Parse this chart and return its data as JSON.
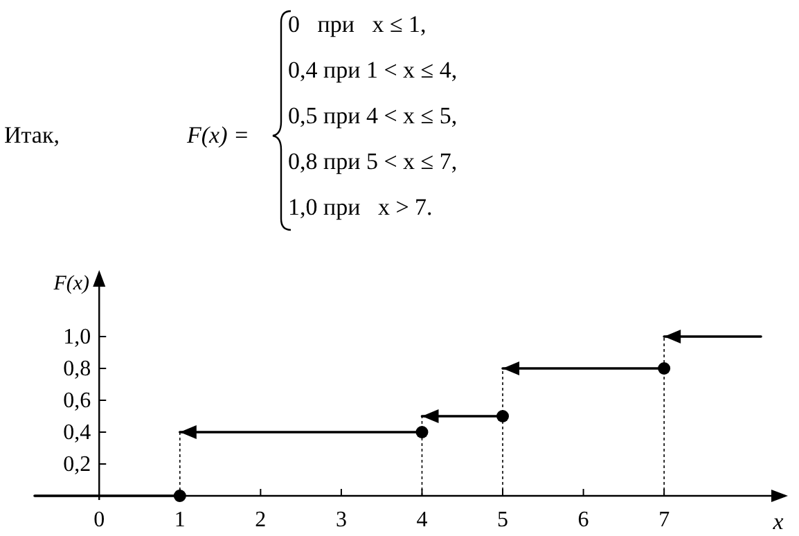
{
  "chart_data": {
    "type": "step",
    "xlabel": "x",
    "ylabel": "F(x)",
    "annotations": [
      "Итак,",
      "F(x) =",
      "0   при   x ≤ 1,",
      "0,4 при 1 < x ≤ 4,",
      "0,5 при 4 < x ≤ 5,",
      "0,8 при 5 < x ≤ 7,",
      "1,0 при   x > 7."
    ],
    "series": [
      {
        "type": "step",
        "color": "#000000",
        "x": [
          -0.8,
          1,
          4,
          5,
          7,
          8.2
        ],
        "values": [
          0,
          0.4,
          0.5,
          0.8,
          1.0,
          1.0
        ]
      },
      {
        "type": "scatter",
        "color": "#000000",
        "marker": "circle",
        "x": [
          1,
          4,
          5,
          7
        ],
        "values": [
          0,
          0.4,
          0.5,
          0.8
        ]
      }
    ],
    "xlim": [
      -0.8,
      8.5
    ],
    "ylim": [
      0,
      1.4
    ],
    "xticks": [
      0,
      1,
      2,
      3,
      4,
      5,
      6,
      7
    ],
    "yticks": [
      {
        "value": 0.2,
        "label": "0,2"
      },
      {
        "value": 0.4,
        "label": "0,4"
      },
      {
        "value": 0.6,
        "label": "0,6"
      },
      {
        "value": 0.8,
        "label": "0,8"
      },
      {
        "value": 1.0,
        "label": "1,0"
      }
    ]
  }
}
